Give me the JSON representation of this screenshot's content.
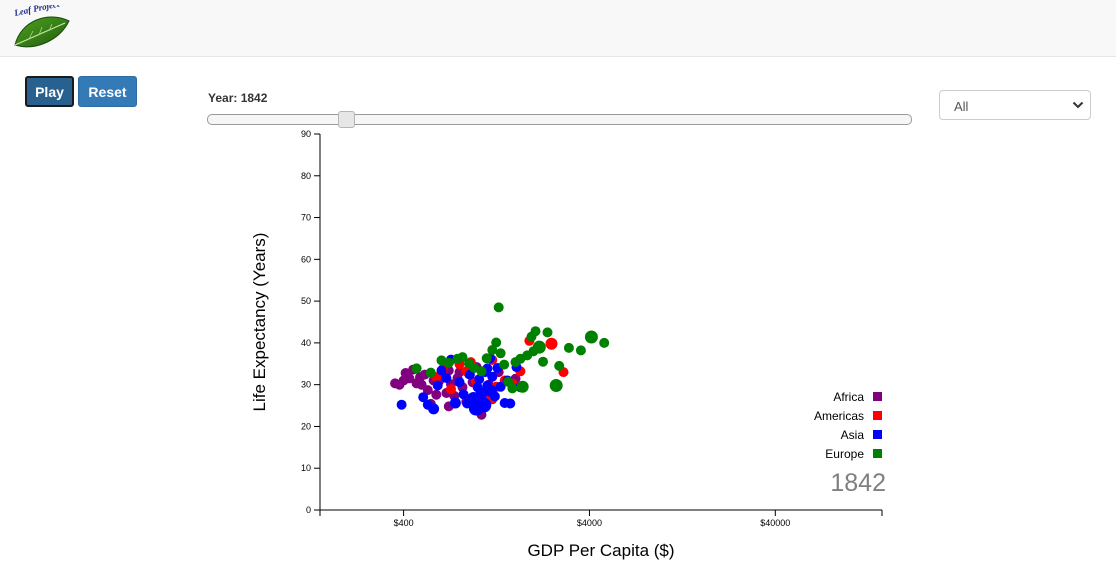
{
  "header": {
    "logo_text": "Leaf Project",
    "logo_icon": "leaf-logo-icon"
  },
  "controls": {
    "play_label": "Play",
    "reset_label": "Reset",
    "year_label": "Year: 1842",
    "slider": {
      "min": 1800,
      "max": 2014,
      "value": 1842
    },
    "continent_select": {
      "selected": "All"
    }
  },
  "chart_data": {
    "type": "scatter",
    "title": "",
    "xlabel": "GDP Per Capita ($)",
    "ylabel": "Life Expectancy (Years)",
    "xscale": "log",
    "xlim": [
      142,
      150000
    ],
    "ylim": [
      0,
      90
    ],
    "xticks": [
      400,
      4000,
      40000
    ],
    "xtick_labels": [
      "$400",
      "$4000",
      "$40000"
    ],
    "yticks": [
      0,
      10,
      20,
      30,
      40,
      50,
      60,
      70,
      80,
      90
    ],
    "grid": false,
    "legend_position": "bottom-right",
    "year_overlay": "1842",
    "series": [
      {
        "name": "Africa",
        "color": "#800080",
        "points": [
          {
            "x": 360,
            "y": 30.3,
            "size": 1
          },
          {
            "x": 380,
            "y": 30.0,
            "size": 1
          },
          {
            "x": 400,
            "y": 31.0,
            "size": 1
          },
          {
            "x": 410,
            "y": 32.8,
            "size": 1
          },
          {
            "x": 430,
            "y": 31.5,
            "size": 1
          },
          {
            "x": 450,
            "y": 33.6,
            "size": 1
          },
          {
            "x": 470,
            "y": 30.3,
            "size": 1
          },
          {
            "x": 490,
            "y": 31.8,
            "size": 1
          },
          {
            "x": 500,
            "y": 30.0,
            "size": 1
          },
          {
            "x": 520,
            "y": 32.4,
            "size": 1
          },
          {
            "x": 540,
            "y": 28.7,
            "size": 1
          },
          {
            "x": 560,
            "y": 25.4,
            "size": 1
          },
          {
            "x": 580,
            "y": 31.0,
            "size": 1
          },
          {
            "x": 600,
            "y": 27.6,
            "size": 1
          },
          {
            "x": 620,
            "y": 30.8,
            "size": 1
          },
          {
            "x": 650,
            "y": 32.2,
            "size": 1
          },
          {
            "x": 680,
            "y": 28.0,
            "size": 1
          },
          {
            "x": 700,
            "y": 33.4,
            "size": 1
          },
          {
            "x": 720,
            "y": 30.1,
            "size": 1
          },
          {
            "x": 750,
            "y": 27.3,
            "size": 1
          },
          {
            "x": 780,
            "y": 31.6,
            "size": 1
          },
          {
            "x": 800,
            "y": 33.0,
            "size": 1
          },
          {
            "x": 830,
            "y": 29.4,
            "size": 1
          },
          {
            "x": 870,
            "y": 25.9,
            "size": 1
          },
          {
            "x": 900,
            "y": 32.5,
            "size": 1
          },
          {
            "x": 940,
            "y": 30.6,
            "size": 1
          },
          {
            "x": 990,
            "y": 34.2,
            "size": 1
          },
          {
            "x": 1050,
            "y": 22.8,
            "size": 1
          },
          {
            "x": 1150,
            "y": 30.0,
            "size": 1
          },
          {
            "x": 1300,
            "y": 33.0,
            "size": 1
          },
          {
            "x": 1600,
            "y": 31.4,
            "size": 1
          },
          {
            "x": 700,
            "y": 24.8,
            "size": 1
          }
        ]
      },
      {
        "name": "Americas",
        "color": "#ff0000",
        "points": [
          {
            "x": 600,
            "y": 31.8,
            "size": 1
          },
          {
            "x": 650,
            "y": 33.7,
            "size": 1
          },
          {
            "x": 720,
            "y": 28.9,
            "size": 1
          },
          {
            "x": 800,
            "y": 34.9,
            "size": 1
          },
          {
            "x": 870,
            "y": 33.2,
            "size": 1
          },
          {
            "x": 920,
            "y": 35.4,
            "size": 1
          },
          {
            "x": 980,
            "y": 30.7,
            "size": 1
          },
          {
            "x": 1000,
            "y": 25.4,
            "size": 1
          },
          {
            "x": 1100,
            "y": 27.5,
            "size": 1
          },
          {
            "x": 1200,
            "y": 35.9,
            "size": 1
          },
          {
            "x": 1260,
            "y": 29.5,
            "size": 1
          },
          {
            "x": 1400,
            "y": 31.0,
            "size": 1
          },
          {
            "x": 1550,
            "y": 30.2,
            "size": 1
          },
          {
            "x": 1700,
            "y": 33.2,
            "size": 1
          },
          {
            "x": 1900,
            "y": 40.5,
            "size": 1
          },
          {
            "x": 2500,
            "y": 39.8,
            "size": 1.2
          },
          {
            "x": 2900,
            "y": 33.0,
            "size": 1
          },
          {
            "x": 1200,
            "y": 26.5,
            "size": 1
          }
        ]
      },
      {
        "name": "Asia",
        "color": "#0000ff",
        "points": [
          {
            "x": 390,
            "y": 25.2,
            "size": 1
          },
          {
            "x": 510,
            "y": 27.0,
            "size": 1
          },
          {
            "x": 540,
            "y": 25.2,
            "size": 1
          },
          {
            "x": 580,
            "y": 24.2,
            "size": 1.1
          },
          {
            "x": 610,
            "y": 29.8,
            "size": 1
          },
          {
            "x": 640,
            "y": 33.4,
            "size": 1
          },
          {
            "x": 680,
            "y": 31.6,
            "size": 1
          },
          {
            "x": 720,
            "y": 36.0,
            "size": 1
          },
          {
            "x": 760,
            "y": 25.6,
            "size": 1.1
          },
          {
            "x": 800,
            "y": 30.6,
            "size": 1
          },
          {
            "x": 840,
            "y": 27.7,
            "size": 1
          },
          {
            "x": 880,
            "y": 25.5,
            "size": 1
          },
          {
            "x": 910,
            "y": 32.4,
            "size": 1
          },
          {
            "x": 950,
            "y": 26.8,
            "size": 1.2
          },
          {
            "x": 980,
            "y": 24.3,
            "size": 1.4
          },
          {
            "x": 1000,
            "y": 29.4,
            "size": 1
          },
          {
            "x": 1020,
            "y": 31.3,
            "size": 1
          },
          {
            "x": 1050,
            "y": 27.9,
            "size": 1.2
          },
          {
            "x": 1080,
            "y": 25.1,
            "size": 1.5
          },
          {
            "x": 1100,
            "y": 33.0,
            "size": 1
          },
          {
            "x": 1130,
            "y": 29.8,
            "size": 1
          },
          {
            "x": 1170,
            "y": 36.3,
            "size": 1
          },
          {
            "x": 1200,
            "y": 31.9,
            "size": 1
          },
          {
            "x": 1240,
            "y": 27.2,
            "size": 1
          },
          {
            "x": 1280,
            "y": 34.0,
            "size": 1
          },
          {
            "x": 1330,
            "y": 29.5,
            "size": 1
          },
          {
            "x": 1400,
            "y": 25.6,
            "size": 1
          },
          {
            "x": 1450,
            "y": 31.0,
            "size": 1
          },
          {
            "x": 1000,
            "y": 23.8,
            "size": 1
          },
          {
            "x": 1130,
            "y": 33.9,
            "size": 1
          },
          {
            "x": 1620,
            "y": 34.2,
            "size": 1
          },
          {
            "x": 1700,
            "y": 29.4,
            "size": 1
          },
          {
            "x": 1500,
            "y": 25.5,
            "size": 1
          },
          {
            "x": 1180,
            "y": 28.5,
            "size": 1.2
          }
        ]
      },
      {
        "name": "Europe",
        "color": "#008000",
        "points": [
          {
            "x": 470,
            "y": 33.9,
            "size": 1
          },
          {
            "x": 560,
            "y": 32.9,
            "size": 1
          },
          {
            "x": 640,
            "y": 35.8,
            "size": 1
          },
          {
            "x": 700,
            "y": 35.2,
            "size": 1
          },
          {
            "x": 780,
            "y": 36.2,
            "size": 1
          },
          {
            "x": 830,
            "y": 36.6,
            "size": 1
          },
          {
            "x": 900,
            "y": 35.1,
            "size": 1
          },
          {
            "x": 960,
            "y": 34.0,
            "size": 1
          },
          {
            "x": 1050,
            "y": 33.2,
            "size": 1
          },
          {
            "x": 1120,
            "y": 36.3,
            "size": 1
          },
          {
            "x": 1200,
            "y": 38.3,
            "size": 1
          },
          {
            "x": 1260,
            "y": 40.1,
            "size": 1
          },
          {
            "x": 1330,
            "y": 37.5,
            "size": 1
          },
          {
            "x": 1390,
            "y": 34.8,
            "size": 1
          },
          {
            "x": 1460,
            "y": 30.7,
            "size": 1
          },
          {
            "x": 1540,
            "y": 29.1,
            "size": 1
          },
          {
            "x": 1600,
            "y": 35.4,
            "size": 1
          },
          {
            "x": 1700,
            "y": 36.2,
            "size": 1
          },
          {
            "x": 1750,
            "y": 29.5,
            "size": 1.2
          },
          {
            "x": 1850,
            "y": 37.0,
            "size": 1
          },
          {
            "x": 1950,
            "y": 41.5,
            "size": 1
          },
          {
            "x": 2000,
            "y": 38.0,
            "size": 1
          },
          {
            "x": 2050,
            "y": 42.8,
            "size": 1
          },
          {
            "x": 2150,
            "y": 39.0,
            "size": 1.3
          },
          {
            "x": 1300,
            "y": 48.5,
            "size": 1
          },
          {
            "x": 2250,
            "y": 35.5,
            "size": 1
          },
          {
            "x": 2380,
            "y": 42.5,
            "size": 1
          },
          {
            "x": 2650,
            "y": 29.8,
            "size": 1.3
          },
          {
            "x": 2750,
            "y": 34.5,
            "size": 1
          },
          {
            "x": 3100,
            "y": 38.8,
            "size": 1
          },
          {
            "x": 3600,
            "y": 38.2,
            "size": 1
          },
          {
            "x": 4100,
            "y": 41.4,
            "size": 1.3
          },
          {
            "x": 4800,
            "y": 40.0,
            "size": 1
          }
        ]
      }
    ]
  }
}
